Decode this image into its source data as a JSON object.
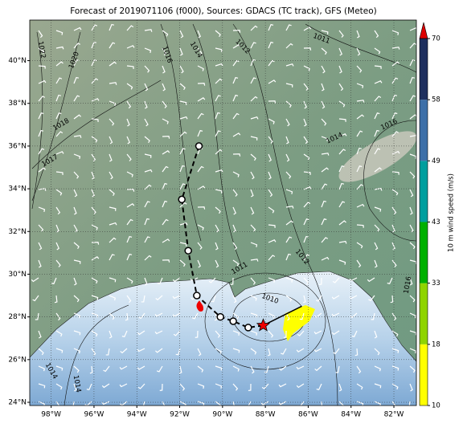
{
  "map": {
    "title": "Forecast of 2019071106 (f000), Sources: GDACS (TC track), GFS (Meteo)",
    "xlim": [
      -99.0,
      -80.95
    ],
    "ylim": [
      23.85,
      41.9
    ],
    "xticks": [
      {
        "value": -98,
        "label": "98°W"
      },
      {
        "value": -96,
        "label": "96°W"
      },
      {
        "value": -94,
        "label": "94°W"
      },
      {
        "value": -92,
        "label": "92°W"
      },
      {
        "value": -90,
        "label": "90°W"
      },
      {
        "value": -88,
        "label": "88°W"
      },
      {
        "value": -86,
        "label": "86°W"
      },
      {
        "value": -84,
        "label": "84°W"
      },
      {
        "value": -82,
        "label": "82°W"
      }
    ],
    "yticks": [
      {
        "value": 24,
        "label": "24°N"
      },
      {
        "value": 26,
        "label": "26°N"
      },
      {
        "value": 28,
        "label": "28°N"
      },
      {
        "value": 30,
        "label": "30°N"
      },
      {
        "value": 32,
        "label": "32°N"
      },
      {
        "value": 34,
        "label": "34°N"
      },
      {
        "value": 36,
        "label": "36°N"
      },
      {
        "value": 38,
        "label": "38°N"
      },
      {
        "value": 40,
        "label": "40°N"
      }
    ],
    "grid": true,
    "colorbar": {
      "label": "10 m wind speed (m/s)",
      "ticks": [
        10,
        18,
        33,
        43,
        49,
        58,
        70
      ],
      "colors": [
        "#ffff00",
        "#8fd400",
        "#00b000",
        "#009e9e",
        "#3d6fa8",
        "#1e2f5e"
      ],
      "extend_color": "#dd0000"
    },
    "isobar_labels": [
      "1022",
      "1020",
      "1018",
      "1017",
      "1016",
      "1014",
      "1012",
      "1011",
      "1014",
      "1016",
      "1012",
      "1011",
      "1010",
      "1016",
      "1014",
      "1014"
    ],
    "track": {
      "lon": [
        -91.1,
        -91.9,
        -91.6,
        -91.2,
        -90.1,
        -89.5,
        -88.8,
        -88.1,
        -86.3
      ],
      "lat": [
        36.0,
        33.5,
        31.1,
        29.0,
        28.0,
        27.8,
        27.5,
        27.6,
        28.5
      ]
    }
  }
}
